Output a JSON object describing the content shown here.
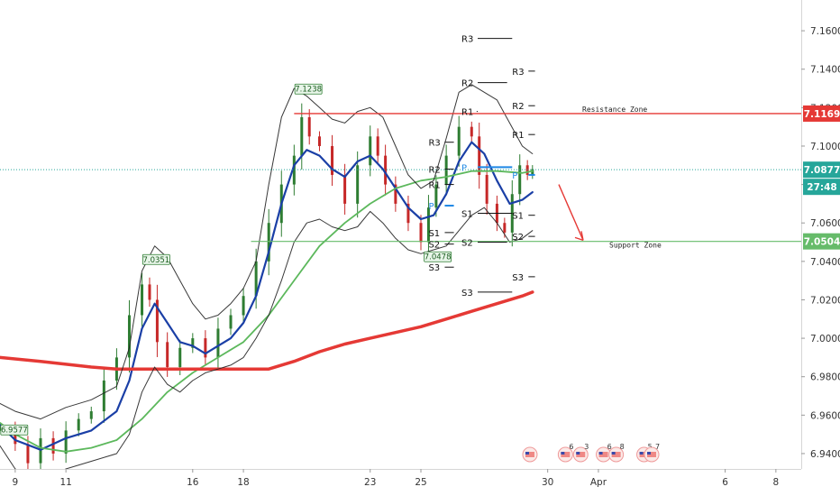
{
  "chart_data": {
    "type": "candlestick",
    "y_ticks": [
      "7.1600",
      "7.1400",
      "7.1200",
      "7.1000",
      "7.0800",
      "7.0600",
      "7.0400",
      "7.0200",
      "7.0000",
      "6.9800",
      "6.9600",
      "6.9400"
    ],
    "x_ticks": [
      {
        "day": 9,
        "label": "9"
      },
      {
        "day": 11,
        "label": "11"
      },
      {
        "day": 16,
        "label": "16"
      },
      {
        "day": 18,
        "label": "18"
      },
      {
        "day": 23,
        "label": "23"
      },
      {
        "day": 25,
        "label": "25"
      },
      {
        "day": 30,
        "label": "30"
      },
      {
        "day": 32,
        "label": "Apr"
      },
      {
        "day": 37,
        "label": "6"
      },
      {
        "day": 39,
        "label": "8"
      }
    ],
    "ylim": [
      6.932,
      7.176
    ],
    "xlim": [
      8.4,
      40.0
    ],
    "price_labels": {
      "resistance": "7.1169",
      "current": "7.0877",
      "countdown": "27:48",
      "support": "7.0504"
    },
    "levels": {
      "resistance_value": 7.1169,
      "current_value": 7.0877,
      "support_value": 7.0504,
      "resistance_label": "Resistance Zone",
      "support_label": "Support Zone"
    },
    "callouts": [
      {
        "text": "6.9577",
        "day": 8.5,
        "price": 6.9577
      },
      {
        "text": "7.0351",
        "day": 14.1,
        "price": 7.0351
      },
      {
        "text": "7.1238",
        "day": 20.1,
        "price": 7.1238
      },
      {
        "text": "7.0478",
        "day": 25.2,
        "price": 7.0478
      }
    ],
    "pivots": [
      {
        "label": "R3",
        "price": 7.156,
        "day_start": 26.6,
        "day_end": 28.6
      },
      {
        "label": "R3",
        "price": 7.139,
        "day_start": 28.6,
        "day_end": 29.5
      },
      {
        "label": "R2",
        "price": 7.133,
        "day_start": 26.6,
        "day_end": 28.4
      },
      {
        "label": "R2",
        "price": 7.121,
        "day_start": 28.6,
        "day_end": 29.5
      },
      {
        "label": "R1",
        "price": 7.118,
        "day_start": 26.6,
        "day_end": 27.2
      },
      {
        "label": "R1",
        "price": 7.106,
        "day_start": 28.6,
        "day_end": 29.5
      },
      {
        "label": "R3",
        "price": 7.102,
        "day_start": 25.3,
        "day_end": 26.3
      },
      {
        "label": "R2",
        "price": 7.088,
        "day_start": 25.3,
        "day_end": 26.3
      },
      {
        "label": "P",
        "price": 7.089,
        "day_start": 26.6,
        "day_end": 28.6
      },
      {
        "label": "R1",
        "price": 7.08,
        "day_start": 25.3,
        "day_end": 26.3
      },
      {
        "label": "P",
        "price": 7.085,
        "day_start": 28.6,
        "day_end": 29.5
      },
      {
        "label": "P",
        "price": 7.069,
        "day_start": 25.3,
        "day_end": 26.3
      },
      {
        "label": "S1",
        "price": 7.065,
        "day_start": 26.6,
        "day_end": 28.6
      },
      {
        "label": "S1",
        "price": 7.064,
        "day_start": 28.6,
        "day_end": 29.5
      },
      {
        "label": "S1",
        "price": 7.055,
        "day_start": 25.3,
        "day_end": 26.3
      },
      {
        "label": "S2",
        "price": 7.05,
        "day_start": 26.6,
        "day_end": 28.4
      },
      {
        "label": "S2",
        "price": 7.053,
        "day_start": 28.6,
        "day_end": 29.5
      },
      {
        "label": "S2",
        "price": 7.049,
        "day_start": 25.3,
        "day_end": 26.3
      },
      {
        "label": "S3",
        "price": 7.037,
        "day_start": 25.3,
        "day_end": 26.3
      },
      {
        "label": "S3",
        "price": 7.032,
        "day_start": 28.6,
        "day_end": 29.5
      },
      {
        "label": "S3",
        "price": 7.024,
        "day_start": 26.6,
        "day_end": 28.6
      }
    ],
    "event_markers": [
      {
        "day": 29.3,
        "text": ""
      },
      {
        "day": 30.7,
        "text": "6"
      },
      {
        "day": 31.3,
        "text": "3"
      },
      {
        "day": 32.2,
        "text": "6"
      },
      {
        "day": 32.7,
        "text": "8"
      },
      {
        "day": 33.8,
        "text": "5"
      },
      {
        "day": 34.1,
        "text": "7"
      }
    ],
    "series": [
      {
        "name": "",
        "role": "price-close",
        "color": "#c62828",
        "x": [
          8.4,
          9.0,
          9.5,
          10.0,
          10.5,
          11.0,
          11.5,
          12.0,
          12.5,
          13.0,
          13.5,
          14.0,
          14.3,
          14.6,
          15.0,
          15.5,
          16.0,
          16.5,
          17.0,
          17.5,
          18.0,
          18.5,
          19.0,
          19.5,
          20.0,
          20.3,
          20.6,
          21.0,
          21.5,
          22.0,
          22.5,
          23.0,
          23.3,
          23.6,
          24.0,
          24.5,
          25.0,
          25.3,
          25.6,
          26.0,
          26.5,
          27.0,
          27.3,
          27.6,
          28.0,
          28.3,
          28.6,
          28.9,
          29.2,
          29.4
        ],
        "values": [
          6.953,
          6.945,
          6.935,
          6.948,
          6.94,
          6.952,
          6.958,
          6.962,
          6.978,
          6.99,
          7.012,
          7.028,
          7.02,
          6.998,
          6.985,
          6.995,
          7.0,
          6.99,
          7.005,
          7.012,
          7.022,
          7.04,
          7.06,
          7.08,
          7.095,
          7.115,
          7.105,
          7.1,
          7.085,
          7.07,
          7.09,
          7.105,
          7.095,
          7.08,
          7.07,
          7.06,
          7.05,
          7.068,
          7.08,
          7.095,
          7.11,
          7.105,
          7.085,
          7.07,
          7.06,
          7.055,
          7.075,
          7.09,
          7.085,
          7.088
        ]
      },
      {
        "name": "",
        "role": "ma-fast",
        "color": "#1a3fa6",
        "x": [
          8.4,
          9.0,
          10.0,
          11.0,
          12.0,
          13.0,
          13.5,
          14.0,
          14.5,
          15.0,
          15.5,
          16.0,
          16.5,
          17.0,
          17.5,
          18.0,
          18.5,
          19.0,
          19.5,
          20.0,
          20.5,
          21.0,
          21.5,
          22.0,
          22.5,
          23.0,
          23.5,
          24.0,
          24.5,
          25.0,
          25.5,
          26.0,
          26.5,
          27.0,
          27.5,
          28.0,
          28.5,
          29.0,
          29.4
        ],
        "values": [
          6.955,
          6.947,
          6.942,
          6.948,
          6.952,
          6.962,
          6.978,
          7.005,
          7.018,
          7.008,
          6.998,
          6.996,
          6.992,
          6.996,
          7.0,
          7.008,
          7.022,
          7.045,
          7.07,
          7.09,
          7.098,
          7.095,
          7.088,
          7.084,
          7.092,
          7.095,
          7.088,
          7.078,
          7.068,
          7.062,
          7.064,
          7.075,
          7.092,
          7.102,
          7.096,
          7.082,
          7.07,
          7.072,
          7.076
        ]
      },
      {
        "name": "",
        "role": "ma-mid",
        "color": "#5cb85c",
        "x": [
          8.4,
          9.0,
          10.0,
          11.0,
          12.0,
          13.0,
          14.0,
          15.0,
          16.0,
          17.0,
          18.0,
          19.0,
          20.0,
          21.0,
          22.0,
          23.0,
          24.0,
          25.0,
          26.0,
          27.0,
          28.0,
          29.0,
          29.4
        ],
        "values": [
          6.956,
          6.95,
          6.943,
          6.941,
          6.943,
          6.947,
          6.958,
          6.972,
          6.982,
          6.99,
          6.998,
          7.012,
          7.03,
          7.048,
          7.06,
          7.07,
          7.078,
          7.082,
          7.084,
          7.087,
          7.087,
          7.086,
          7.087
        ]
      },
      {
        "name": "",
        "role": "ma-slow",
        "color": "#e53935",
        "x": [
          8.4,
          10.0,
          12.0,
          13.0,
          14.0,
          15.0,
          16.0,
          17.0,
          18.0,
          19.0,
          20.0,
          21.0,
          22.0,
          23.0,
          24.0,
          25.0,
          26.0,
          27.0,
          28.0,
          29.0,
          29.4
        ],
        "values": [
          6.99,
          6.988,
          6.985,
          6.984,
          6.984,
          6.984,
          6.984,
          6.984,
          6.984,
          6.984,
          6.988,
          6.993,
          6.997,
          7.0,
          7.003,
          7.006,
          7.01,
          7.014,
          7.018,
          7.022,
          7.024
        ]
      },
      {
        "name": "",
        "role": "band-upper",
        "color": "#222222",
        "x": [
          8.4,
          9.0,
          10.0,
          11.0,
          12.0,
          13.0,
          13.5,
          14.0,
          14.5,
          15.0,
          15.5,
          16.0,
          16.5,
          17.0,
          17.5,
          18.0,
          18.5,
          19.0,
          19.5,
          20.0,
          20.5,
          21.0,
          21.5,
          22.0,
          22.5,
          23.0,
          23.5,
          24.0,
          24.5,
          25.0,
          25.5,
          26.0,
          26.5,
          27.0,
          27.5,
          28.0,
          28.5,
          29.0,
          29.4
        ],
        "values": [
          6.966,
          6.962,
          6.958,
          6.964,
          6.968,
          6.975,
          6.995,
          7.035,
          7.048,
          7.042,
          7.03,
          7.018,
          7.01,
          7.012,
          7.018,
          7.026,
          7.04,
          7.08,
          7.115,
          7.13,
          7.126,
          7.12,
          7.114,
          7.112,
          7.118,
          7.12,
          7.115,
          7.1,
          7.085,
          7.078,
          7.082,
          7.104,
          7.128,
          7.132,
          7.128,
          7.124,
          7.112,
          7.1,
          7.096
        ]
      },
      {
        "name": "",
        "role": "band-lower",
        "color": "#222222",
        "x": [
          8.4,
          9.0,
          10.0,
          11.0,
          12.0,
          13.0,
          13.5,
          14.0,
          14.5,
          15.0,
          15.5,
          16.0,
          16.5,
          17.0,
          17.5,
          18.0,
          18.5,
          19.0,
          19.5,
          20.0,
          20.5,
          21.0,
          21.5,
          22.0,
          22.5,
          23.0,
          23.5,
          24.0,
          24.5,
          25.0,
          25.5,
          26.0,
          26.5,
          27.0,
          27.5,
          28.0,
          28.5,
          29.0,
          29.4
        ],
        "values": [
          6.944,
          6.932,
          6.926,
          6.932,
          6.936,
          6.94,
          6.95,
          6.972,
          6.985,
          6.976,
          6.972,
          6.978,
          6.982,
          6.984,
          6.986,
          6.99,
          7.0,
          7.012,
          7.03,
          7.05,
          7.06,
          7.062,
          7.058,
          7.056,
          7.058,
          7.066,
          7.06,
          7.052,
          7.046,
          7.044,
          7.046,
          7.048,
          7.056,
          7.064,
          7.068,
          7.06,
          7.05,
          7.052,
          7.056
        ]
      }
    ]
  }
}
